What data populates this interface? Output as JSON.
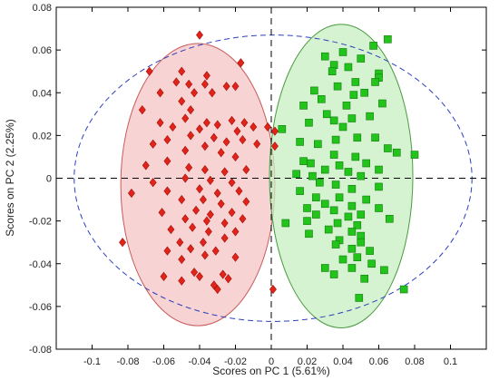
{
  "chart_data": {
    "type": "scatter",
    "title": "",
    "xlabel": "Scores on PC 1 (5.61%)",
    "ylabel": "Scores on PC 2 (2.25%)",
    "xlim": [
      -0.12,
      0.12
    ],
    "ylim": [
      -0.08,
      0.08
    ],
    "xticks": [
      -0.1,
      -0.08,
      -0.06,
      -0.04,
      -0.02,
      0,
      0.02,
      0.04,
      0.06,
      0.08,
      0.1
    ],
    "xtick_labels": [
      "-0.1",
      "-0.08",
      "-0.06",
      "-0.04",
      "-0.02",
      "0",
      "0.02",
      "0.04",
      "0.06",
      "0.08",
      "0.1"
    ],
    "yticks": [
      -0.08,
      -0.06,
      -0.04,
      -0.02,
      0,
      0.02,
      0.04,
      0.06,
      0.08
    ],
    "ytick_labels": [
      "-0.08",
      "-0.06",
      "-0.04",
      "-0.02",
      "0",
      "0.02",
      "0.04",
      "0.06",
      "0.08"
    ],
    "grid": false,
    "reference_lines": {
      "x": 0,
      "y": 0,
      "style": "dashed",
      "color": "#000000"
    },
    "confidence_ellipse": {
      "center": [
        0.001,
        0.0
      ],
      "radius": [
        0.111,
        0.067
      ],
      "style": "dashed",
      "color": "#2b3fbf"
    },
    "group_ellipses": [
      {
        "center": [
          -0.041,
          -0.003
        ],
        "radius": [
          0.043,
          0.066
        ],
        "fill": "#f4c4c4",
        "stroke": "#c85a5a"
      },
      {
        "center": [
          0.039,
          0.001
        ],
        "radius": [
          0.04,
          0.071
        ],
        "fill": "#c7efc2",
        "stroke": "#4a9a40"
      }
    ],
    "series": [
      {
        "marker": "diamond",
        "color": "#e2231a",
        "points": [
          [
            -0.04,
            0.067
          ],
          [
            -0.068,
            0.05
          ],
          [
            -0.05,
            0.05
          ],
          [
            -0.036,
            0.048
          ],
          [
            -0.037,
            0.044
          ],
          [
            -0.017,
            0.054
          ],
          [
            -0.053,
            0.045
          ],
          [
            -0.046,
            0.044
          ],
          [
            -0.062,
            0.04
          ],
          [
            -0.043,
            0.04
          ],
          [
            -0.033,
            0.04
          ],
          [
            -0.025,
            0.043
          ],
          [
            -0.02,
            0.043
          ],
          [
            -0.072,
            0.032
          ],
          [
            -0.05,
            0.036
          ],
          [
            -0.045,
            0.032
          ],
          [
            -0.048,
            0.028
          ],
          [
            -0.055,
            0.024
          ],
          [
            -0.062,
            0.026
          ],
          [
            -0.036,
            0.026
          ],
          [
            -0.03,
            0.025
          ],
          [
            -0.022,
            0.027
          ],
          [
            -0.019,
            0.022
          ],
          [
            -0.015,
            0.026
          ],
          [
            -0.01,
            0.024
          ],
          [
            -0.002,
            0.024
          ],
          [
            -0.066,
            0.016
          ],
          [
            -0.058,
            0.018
          ],
          [
            -0.045,
            0.02
          ],
          [
            -0.04,
            0.023
          ],
          [
            -0.032,
            0.019
          ],
          [
            -0.025,
            0.017
          ],
          [
            -0.016,
            0.018
          ],
          [
            -0.008,
            0.016
          ],
          [
            -0.048,
            0.013
          ],
          [
            -0.037,
            0.015
          ],
          [
            -0.028,
            0.012
          ],
          [
            -0.02,
            0.01
          ],
          [
            -0.07,
            0.006
          ],
          [
            -0.058,
            0.008
          ],
          [
            -0.046,
            0.005
          ],
          [
            -0.037,
            0.004
          ],
          [
            -0.026,
            0.003
          ],
          [
            -0.014,
            0.004
          ],
          [
            -0.048,
            0.0
          ],
          [
            -0.034,
            -0.001
          ],
          [
            -0.022,
            -0.002
          ],
          [
            -0.066,
            -0.002
          ],
          [
            -0.078,
            -0.007
          ],
          [
            -0.058,
            -0.006
          ],
          [
            -0.04,
            -0.005
          ],
          [
            -0.03,
            -0.007
          ],
          [
            -0.018,
            -0.006
          ],
          [
            -0.05,
            -0.01
          ],
          [
            -0.038,
            -0.01
          ],
          [
            -0.028,
            -0.012
          ],
          [
            -0.014,
            -0.011
          ],
          [
            -0.061,
            -0.016
          ],
          [
            -0.042,
            -0.015
          ],
          [
            -0.034,
            -0.017
          ],
          [
            -0.022,
            -0.016
          ],
          [
            -0.048,
            -0.019
          ],
          [
            -0.036,
            -0.02
          ],
          [
            -0.026,
            -0.021
          ],
          [
            -0.016,
            -0.019
          ],
          [
            -0.056,
            -0.024
          ],
          [
            -0.044,
            -0.023
          ],
          [
            -0.035,
            -0.025
          ],
          [
            -0.02,
            -0.025
          ],
          [
            -0.051,
            -0.03
          ],
          [
            -0.038,
            -0.03
          ],
          [
            -0.026,
            -0.028
          ],
          [
            -0.083,
            -0.03
          ],
          [
            -0.058,
            -0.034
          ],
          [
            -0.045,
            -0.033
          ],
          [
            -0.031,
            -0.034
          ],
          [
            -0.05,
            -0.038
          ],
          [
            -0.037,
            -0.036
          ],
          [
            -0.02,
            -0.037
          ],
          [
            -0.043,
            -0.044
          ],
          [
            -0.06,
            -0.046
          ],
          [
            -0.04,
            -0.046
          ],
          [
            -0.027,
            -0.045
          ],
          [
            -0.05,
            -0.048
          ],
          [
            -0.032,
            -0.05
          ],
          [
            -0.024,
            -0.047
          ],
          [
            -0.03,
            -0.052
          ],
          [
            0.001,
            -0.052
          ],
          [
            0.002,
            0.022
          ],
          [
            0.002,
            0.015
          ]
        ]
      },
      {
        "marker": "square",
        "color": "#22c31a",
        "points": [
          [
            0.065,
            0.065
          ],
          [
            0.057,
            0.062
          ],
          [
            0.04,
            0.059
          ],
          [
            0.03,
            0.057
          ],
          [
            0.05,
            0.056
          ],
          [
            0.043,
            0.052
          ],
          [
            0.035,
            0.053
          ],
          [
            0.06,
            0.049
          ],
          [
            0.06,
            0.047
          ],
          [
            0.034,
            0.05
          ],
          [
            0.047,
            0.045
          ],
          [
            0.058,
            0.045
          ],
          [
            0.037,
            0.043
          ],
          [
            0.046,
            0.039
          ],
          [
            0.052,
            0.04
          ],
          [
            0.024,
            0.041
          ],
          [
            0.028,
            0.037
          ],
          [
            0.062,
            0.035
          ],
          [
            0.042,
            0.034
          ],
          [
            0.018,
            0.034
          ],
          [
            0.031,
            0.03
          ],
          [
            0.045,
            0.028
          ],
          [
            0.055,
            0.029
          ],
          [
            0.035,
            0.027
          ],
          [
            0.021,
            0.026
          ],
          [
            0.006,
            0.023
          ],
          [
            0.04,
            0.024
          ],
          [
            0.048,
            0.019
          ],
          [
            0.058,
            0.019
          ],
          [
            0.036,
            0.018
          ],
          [
            0.026,
            0.016
          ],
          [
            0.016,
            0.017
          ],
          [
            0.065,
            0.014
          ],
          [
            0.07,
            0.012
          ],
          [
            0.08,
            0.011
          ],
          [
            0.047,
            0.01
          ],
          [
            0.035,
            0.011
          ],
          [
            0.018,
            0.008
          ],
          [
            0.022,
            0.007
          ],
          [
            0.038,
            0.006
          ],
          [
            0.053,
            0.007
          ],
          [
            0.03,
            0.004
          ],
          [
            0.043,
            0.003
          ],
          [
            0.06,
            0.004
          ],
          [
            0.014,
            0.002
          ],
          [
            0.023,
            0.001
          ],
          [
            0.05,
            0.001
          ],
          [
            0.027,
            -0.002
          ],
          [
            0.036,
            -0.003
          ],
          [
            0.045,
            -0.005
          ],
          [
            0.06,
            -0.004
          ],
          [
            0.016,
            -0.006
          ],
          [
            0.025,
            -0.009
          ],
          [
            0.038,
            -0.009
          ],
          [
            0.053,
            -0.01
          ],
          [
            0.03,
            -0.012
          ],
          [
            0.02,
            -0.014
          ],
          [
            0.045,
            -0.013
          ],
          [
            0.035,
            -0.015
          ],
          [
            0.06,
            -0.014
          ],
          [
            0.025,
            -0.017
          ],
          [
            0.043,
            -0.018
          ],
          [
            0.05,
            -0.017
          ],
          [
            0.066,
            -0.019
          ],
          [
            0.02,
            -0.02
          ],
          [
            0.008,
            -0.021
          ],
          [
            0.037,
            -0.021
          ],
          [
            0.048,
            -0.022
          ],
          [
            0.032,
            -0.024
          ],
          [
            0.045,
            -0.025
          ],
          [
            0.021,
            -0.026
          ],
          [
            0.038,
            -0.029
          ],
          [
            0.05,
            -0.027
          ],
          [
            0.05,
            -0.03
          ],
          [
            0.036,
            -0.031
          ],
          [
            0.045,
            -0.033
          ],
          [
            0.055,
            -0.034
          ],
          [
            0.04,
            -0.038
          ],
          [
            0.048,
            -0.037
          ],
          [
            0.03,
            -0.042
          ],
          [
            0.045,
            -0.042
          ],
          [
            0.056,
            -0.04
          ],
          [
            0.035,
            -0.045
          ],
          [
            0.063,
            -0.043
          ],
          [
            0.052,
            -0.047
          ],
          [
            0.049,
            -0.056
          ],
          [
            0.074,
            -0.052
          ]
        ]
      }
    ]
  },
  "colors": {
    "axis": "#000000",
    "group_a": "#e2231a",
    "group_b": "#22c31a",
    "confidence": "#2b3fbf"
  }
}
